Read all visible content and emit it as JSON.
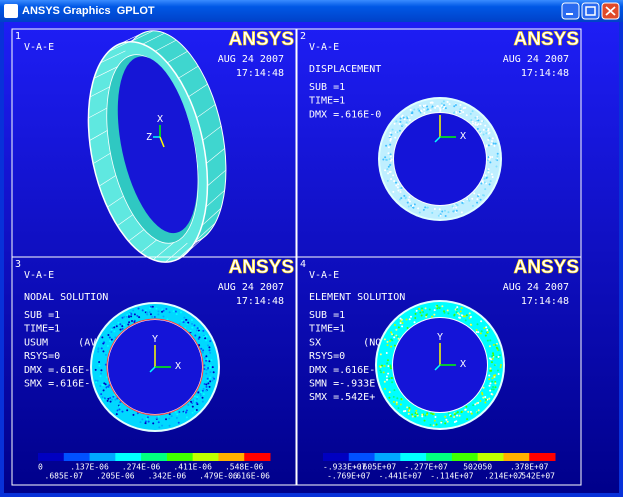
{
  "window": {
    "title": "ANSYS Graphics  GPLOT"
  },
  "panels": [
    {
      "number": "1",
      "lines": [
        "V-A-E"
      ],
      "logo": "ANSYS",
      "date": "AUG 24 2007",
      "time": "17:14:48",
      "axes": [
        "X",
        "Z"
      ]
    },
    {
      "number": "2",
      "lines": [
        "V-A-E"
      ],
      "logo": "ANSYS",
      "date": "AUG 24 2007",
      "time": "17:14:48",
      "result": "DISPLACEMENT",
      "info": [
        "SUB =1",
        "TIME=1",
        "DMX =.616E-0"
      ],
      "axes": [
        "Y",
        "X"
      ]
    },
    {
      "number": "3",
      "lines": [
        "V-A-E"
      ],
      "logo": "ANSYS",
      "date": "AUG 24 2007",
      "time": "17:14:48",
      "result": "NODAL SOLUTION",
      "info": [
        "SUB =1",
        "TIME=1",
        "USUM     (AV",
        "RSYS=0",
        "DMX =.616E-",
        "SMX =.616E-"
      ],
      "axes": [
        "Y",
        "X"
      ],
      "legend": {
        "colors": [
          "#0000c0",
          "#0050ff",
          "#00a8ff",
          "#00ffff",
          "#00ff80",
          "#40ff00",
          "#c0ff00",
          "#ffb000",
          "#ff0000"
        ],
        "top": [
          "0",
          ".137E-06",
          ".274E-06",
          ".411E-06",
          ".548E-06"
        ],
        "bottom": [
          ".685E-07",
          ".205E-06",
          ".342E-06",
          ".479E-06",
          ".616E-06"
        ]
      }
    },
    {
      "number": "4",
      "lines": [
        "V-A-E"
      ],
      "logo": "ANSYS",
      "date": "AUG 24 2007",
      "time": "17:14:48",
      "result": "ELEMENT SOLUTION",
      "info": [
        "SUB =1",
        "TIME=1",
        "SX       (NO",
        "RSYS=0",
        "DMX =.616E-",
        "SMN =-.933E",
        "SMX =.542E+"
      ],
      "axes": [
        "Y",
        "X"
      ],
      "legend": {
        "colors": [
          "#0000c0",
          "#0050ff",
          "#00a8ff",
          "#00ffff",
          "#00ff80",
          "#40ff00",
          "#c0ff00",
          "#ffb000",
          "#ff0000"
        ],
        "top": [
          "-.933E+07",
          "-.605E+07",
          "-.277E+07",
          "502050",
          ".378E+07"
        ],
        "bottom": [
          "-.769E+07",
          "-.441E+07",
          "-.114E+07",
          ".214E+07",
          ".542E+07"
        ]
      }
    }
  ]
}
